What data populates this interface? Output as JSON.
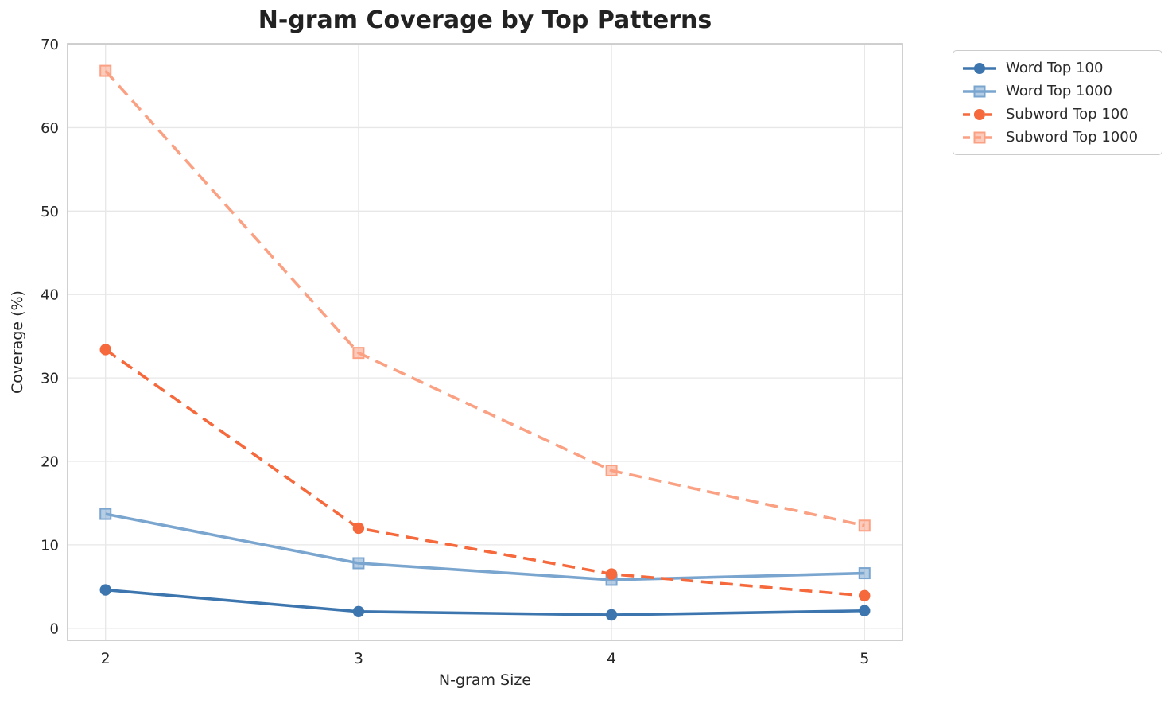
{
  "figure": {
    "background_color": "#ffffff",
    "text_color": "#262626",
    "grid_color": "#e7e7e7",
    "spine_color": "#cbcbcb"
  },
  "chart_data": {
    "type": "line",
    "title": "N-gram Coverage by Top Patterns",
    "xlabel": "N-gram Size",
    "ylabel": "Coverage (%)",
    "x": [
      2,
      3,
      4,
      5
    ],
    "xticks": [
      2,
      3,
      4,
      5
    ],
    "xticklabels": [
      "2",
      "3",
      "4",
      "5"
    ],
    "yticks": [
      0,
      10,
      20,
      30,
      40,
      50,
      60,
      70
    ],
    "yticklabels": [
      "0",
      "10",
      "20",
      "30",
      "40",
      "50",
      "60",
      "70"
    ],
    "xlim": [
      1.85,
      5.15
    ],
    "ylim": [
      -1.45,
      70.05
    ],
    "grid": true,
    "legend_position": "upper right, outside plot area",
    "series": [
      {
        "name": "Word Top 100",
        "color": "#3d76ae",
        "linestyle": "solid",
        "marker": "circle",
        "values": [
          4.6,
          2.0,
          1.6,
          2.1
        ]
      },
      {
        "name": "Word Top 1000",
        "color": "#7aa5cf",
        "linestyle": "solid",
        "marker": "square",
        "values": [
          13.7,
          7.8,
          5.8,
          6.6
        ]
      },
      {
        "name": "Subword Top 100",
        "color": "#f5693c",
        "linestyle": "dashed",
        "marker": "circle",
        "values": [
          33.4,
          12.0,
          6.5,
          3.9
        ]
      },
      {
        "name": "Subword Top 1000",
        "color": "#fba183",
        "linestyle": "dashed",
        "marker": "square",
        "values": [
          66.8,
          33.0,
          18.9,
          12.3
        ]
      }
    ]
  }
}
